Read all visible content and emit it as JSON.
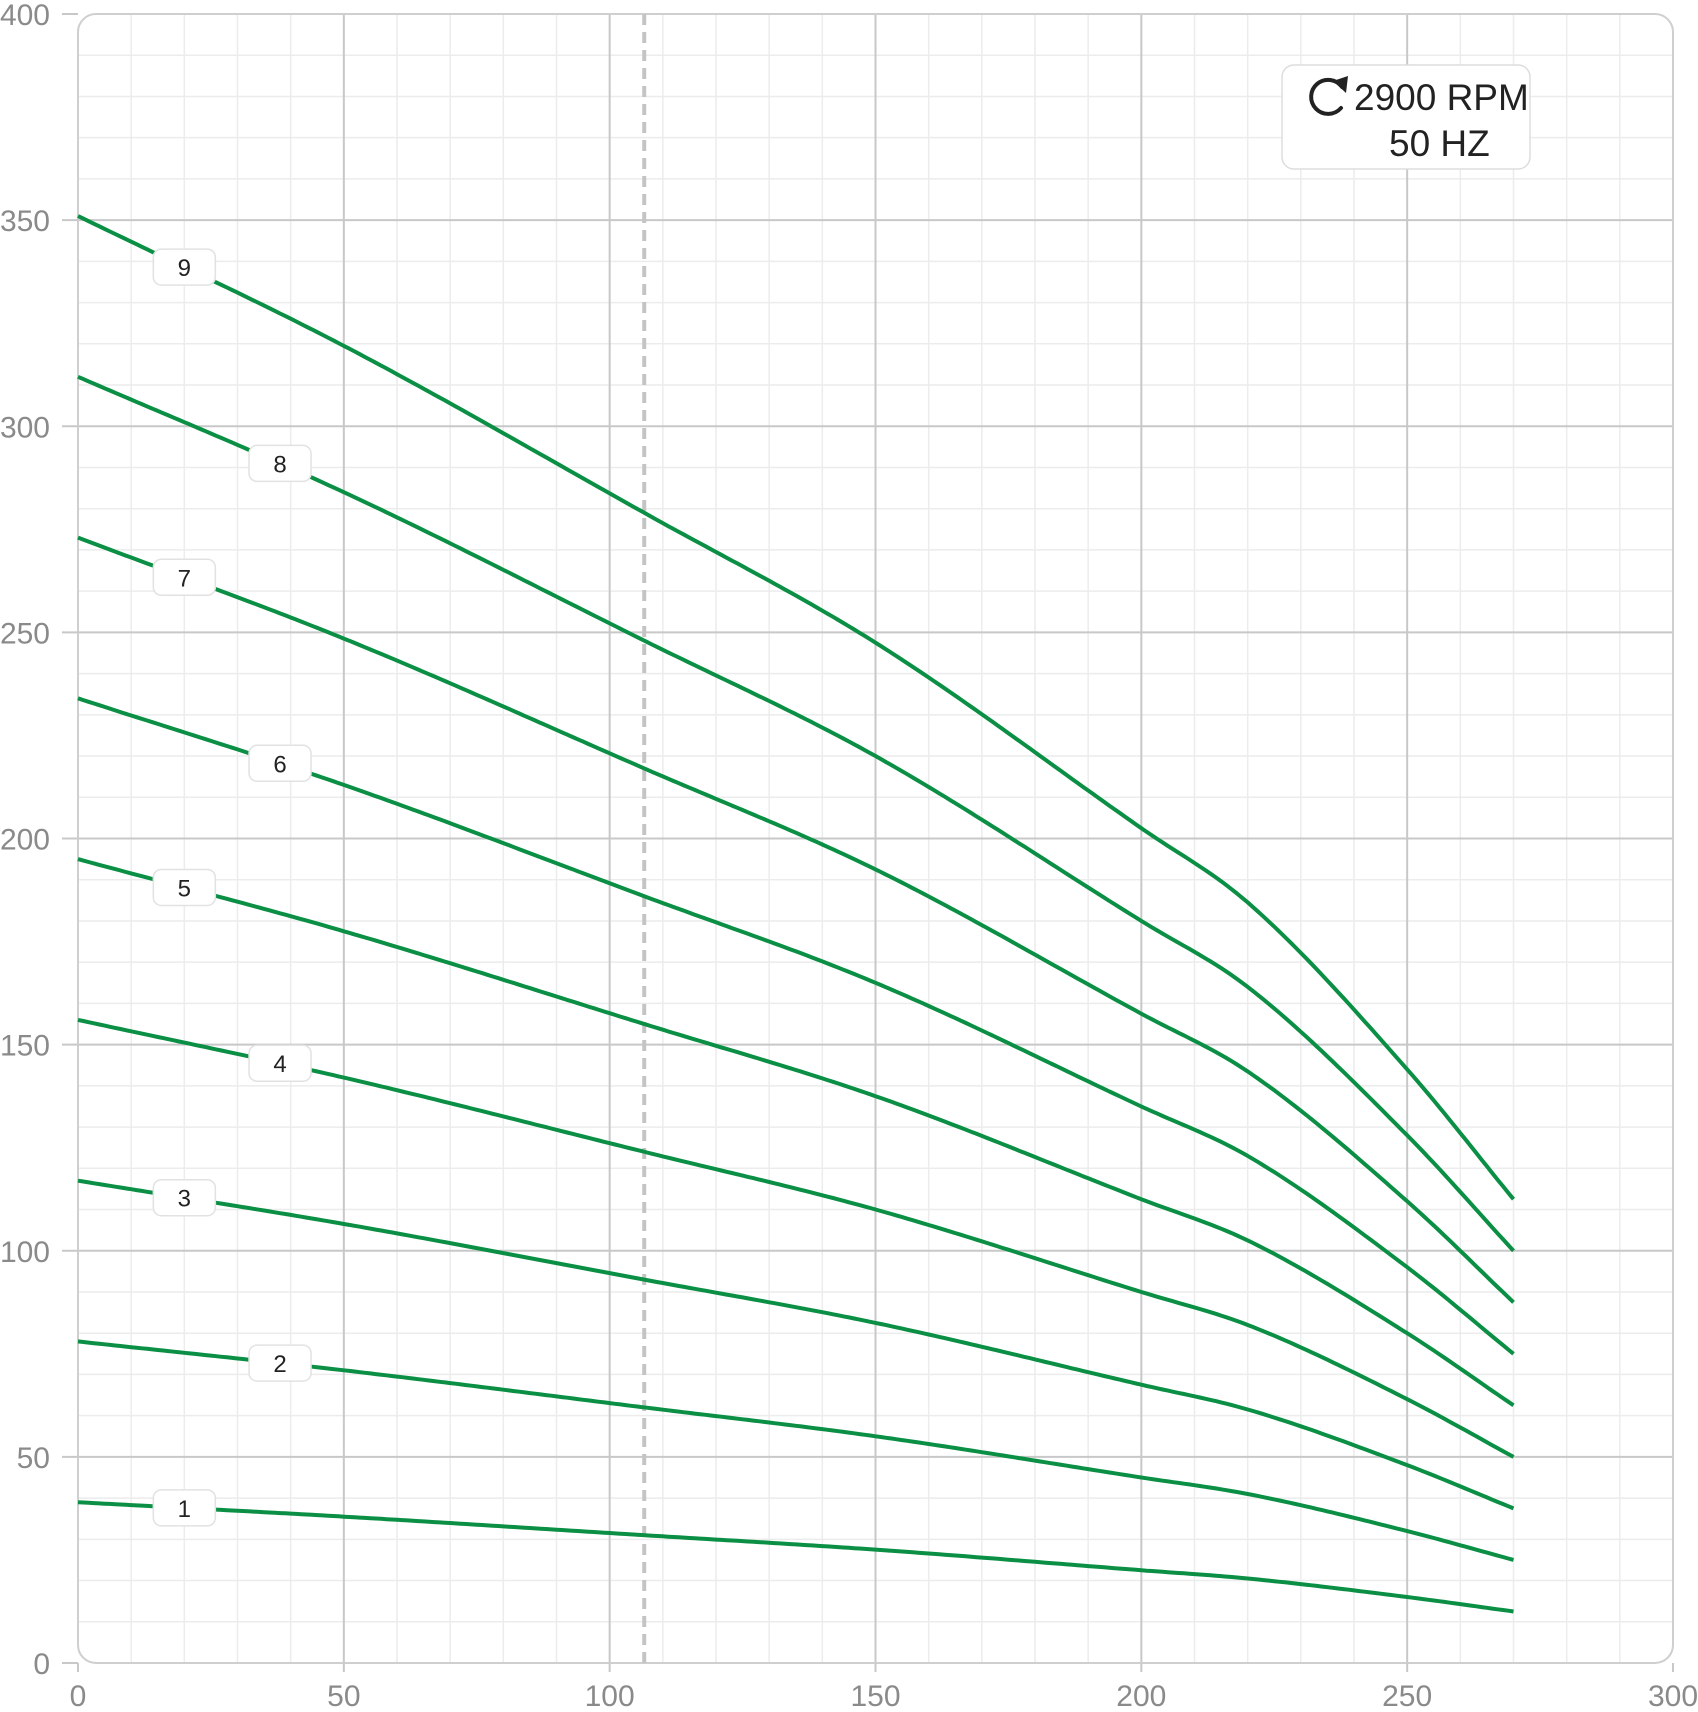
{
  "chart_data": {
    "type": "line",
    "title": "",
    "xlabel": "",
    "ylabel": "",
    "xlim": [
      0,
      300
    ],
    "ylim": [
      0,
      400
    ],
    "x_ticks": [
      0,
      50,
      100,
      150,
      200,
      250,
      300
    ],
    "y_ticks": [
      0,
      50,
      100,
      150,
      200,
      250,
      300,
      350,
      400
    ],
    "grid": true,
    "minor_grid": true,
    "reference_line_x": 106.5,
    "speed_box": {
      "rpm": "2900 RPM",
      "hz": "50 HZ",
      "icon": "rotation-clockwise-icon"
    },
    "series": [
      {
        "label": "1",
        "label_x": 20,
        "x": [
          0,
          50,
          106.5,
          150,
          200,
          220,
          250,
          270
        ],
        "y": [
          39,
          35.5,
          31,
          27.5,
          22.5,
          20.5,
          16,
          12.5
        ]
      },
      {
        "label": "2",
        "label_x": 38,
        "x": [
          0,
          50,
          106.5,
          150,
          200,
          220,
          250,
          270
        ],
        "y": [
          78,
          71,
          62,
          55,
          45,
          41,
          32,
          25
        ]
      },
      {
        "label": "3",
        "label_x": 20,
        "x": [
          0,
          50,
          106.5,
          150,
          200,
          220,
          250,
          270
        ],
        "y": [
          117,
          106.5,
          93,
          82.5,
          67.5,
          61.5,
          48,
          37.5
        ]
      },
      {
        "label": "4",
        "label_x": 38,
        "x": [
          0,
          50,
          106.5,
          150,
          200,
          220,
          250,
          270
        ],
        "y": [
          156,
          142,
          124,
          110,
          90,
          82,
          64,
          50
        ]
      },
      {
        "label": "5",
        "label_x": 20,
        "x": [
          0,
          50,
          106.5,
          150,
          200,
          220,
          250,
          270
        ],
        "y": [
          195,
          177.5,
          155,
          137.5,
          112.5,
          102.5,
          80,
          62.5
        ]
      },
      {
        "label": "6",
        "label_x": 38,
        "x": [
          0,
          50,
          106.5,
          150,
          200,
          220,
          250,
          270
        ],
        "y": [
          234,
          213,
          186,
          165,
          135,
          123,
          96,
          75
        ]
      },
      {
        "label": "7",
        "label_x": 20,
        "x": [
          0,
          50,
          106.5,
          150,
          200,
          220,
          250,
          270
        ],
        "y": [
          273,
          248.5,
          217,
          192.5,
          157.5,
          143.5,
          112,
          87.5
        ]
      },
      {
        "label": "8",
        "label_x": 38,
        "x": [
          0,
          50,
          106.5,
          150,
          200,
          220,
          250,
          270
        ],
        "y": [
          312,
          284,
          248,
          220,
          180,
          164,
          128,
          100
        ]
      },
      {
        "label": "9",
        "label_x": 20,
        "x": [
          0,
          50,
          106.5,
          150,
          200,
          220,
          250,
          270
        ],
        "y": [
          351,
          319.5,
          279,
          247.5,
          202.5,
          184.5,
          144,
          112.5
        ]
      }
    ],
    "colors": {
      "curve": "#0a8f45",
      "major_grid": "#c8c8c8",
      "minor_grid": "#ececec",
      "reference_line": "#c4c4c4",
      "frame": "#cfcfcf"
    }
  }
}
